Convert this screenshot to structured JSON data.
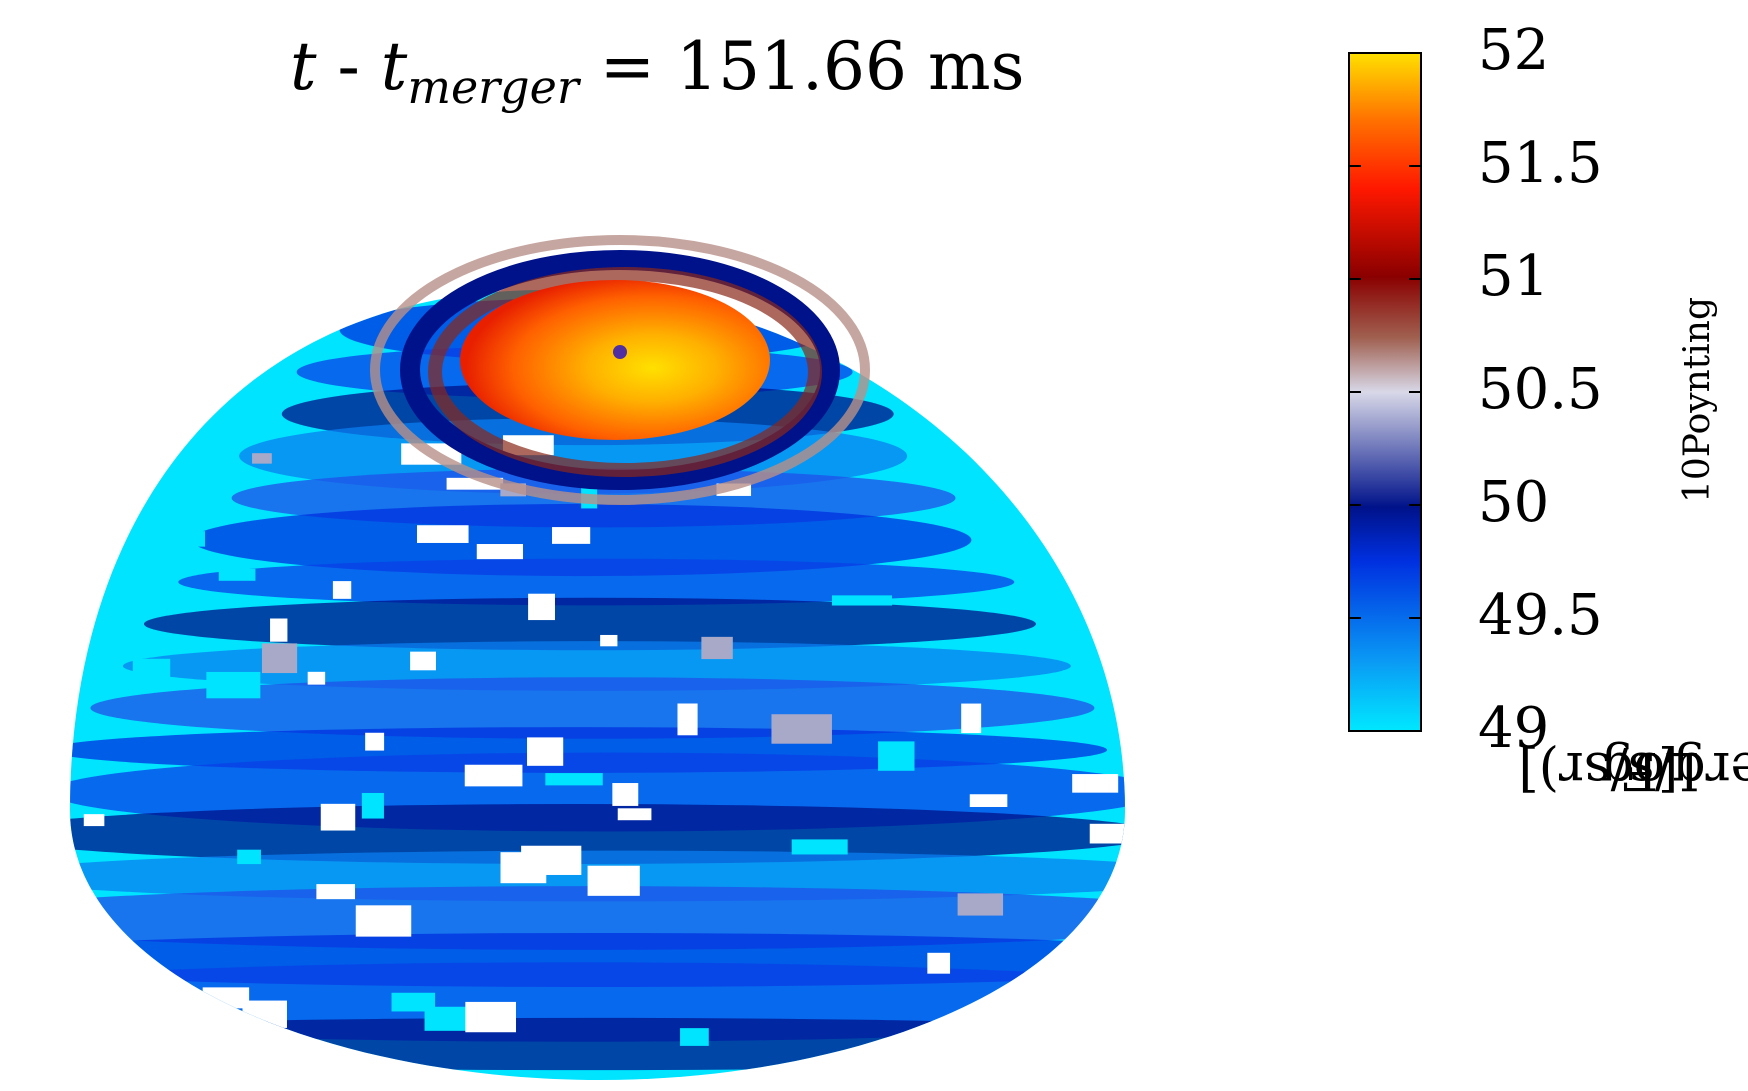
{
  "chart_data": {
    "type": "heatmap",
    "title": {
      "t": "t",
      "dash": " - ",
      "t2": "t",
      "subscript": "merger",
      "equals": " = 151.66 ms"
    },
    "colorbar": {
      "label_prefix": "Log",
      "label_sub1": "10",
      "label_mid": "[F",
      "label_sub2": "Poynting",
      "label_suffix": " (erg/s/sr)]",
      "range": [
        49,
        52
      ],
      "ticks": [
        "52",
        "51.5",
        "51",
        "50.5",
        "50",
        "49.5",
        "49"
      ],
      "colormap": [
        "#00e8ff",
        "#0a7ff0",
        "#0030e0",
        "#00128a",
        "#d0d0e0",
        "#a06050",
        "#8a0000",
        "#ff1800",
        "#ff8000",
        "#ffe000"
      ]
    },
    "projection": "hemisphere",
    "polar_cap_value": 51.8,
    "ring_value": 50.6,
    "background_value_range": [
      49,
      50.3
    ],
    "value_below_min_color": "#ffffff"
  }
}
